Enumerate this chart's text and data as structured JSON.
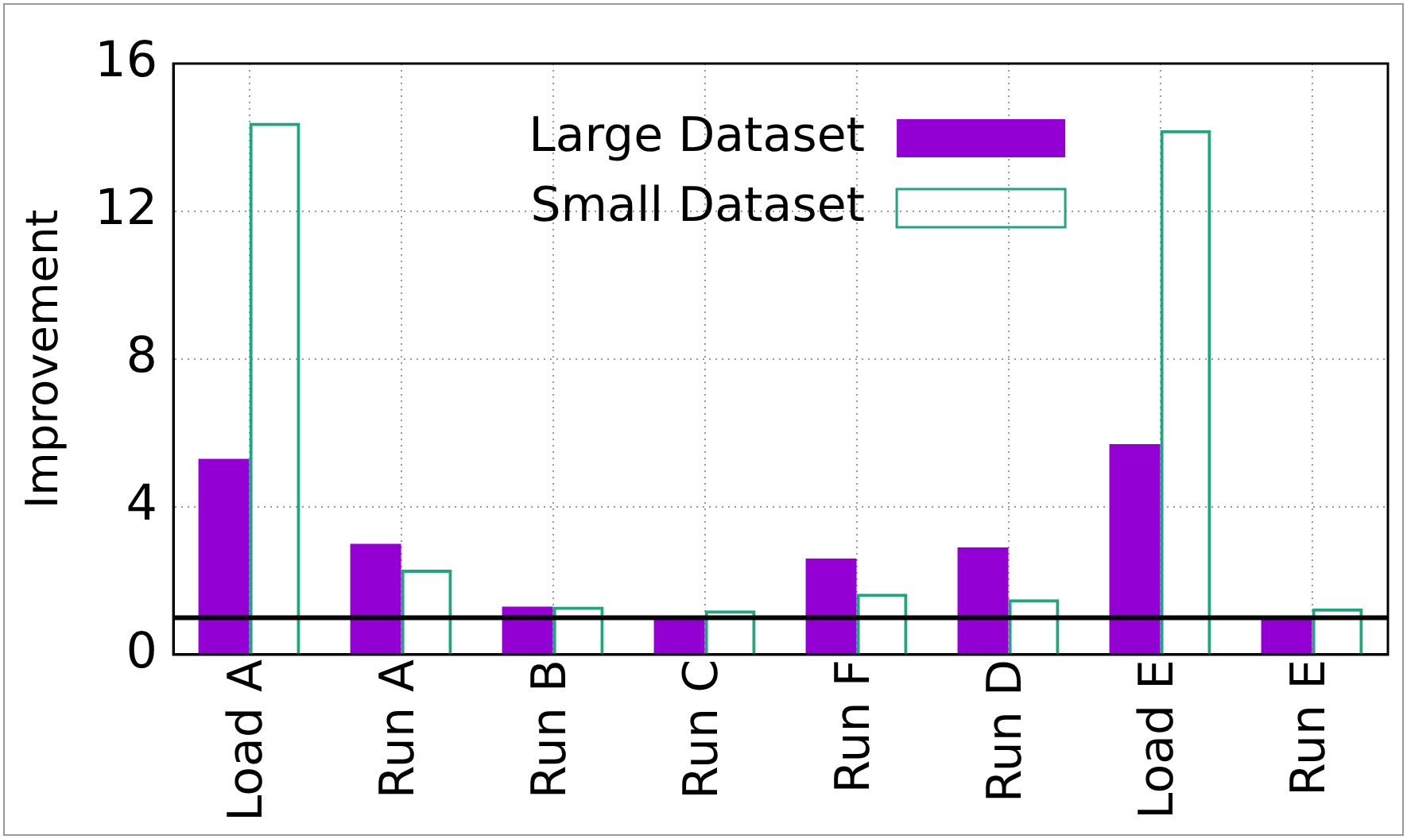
{
  "chart_data": {
    "type": "bar",
    "ylabel": "Improvement",
    "categories": [
      "Load A",
      "Run A",
      "Run B",
      "Run C",
      "Run F",
      "Run D",
      "Load E",
      "Run E"
    ],
    "series": [
      {
        "name": "Large Dataset",
        "color": "#9400d3",
        "values": [
          5.3,
          3.0,
          1.3,
          1.05,
          2.6,
          2.9,
          5.7,
          1.0
        ]
      },
      {
        "name": "Small Dataset",
        "color": "#1fa67e",
        "values": [
          14.4,
          2.3,
          1.3,
          1.2,
          1.65,
          1.5,
          14.2,
          1.25
        ]
      }
    ],
    "ylim": [
      0,
      16
    ],
    "yticks": [
      0,
      4,
      8,
      12,
      16
    ],
    "grid": true,
    "legend": "top",
    "ref_lines": [
      {
        "axis": "y",
        "value": 1,
        "color": "#000000"
      }
    ]
  }
}
